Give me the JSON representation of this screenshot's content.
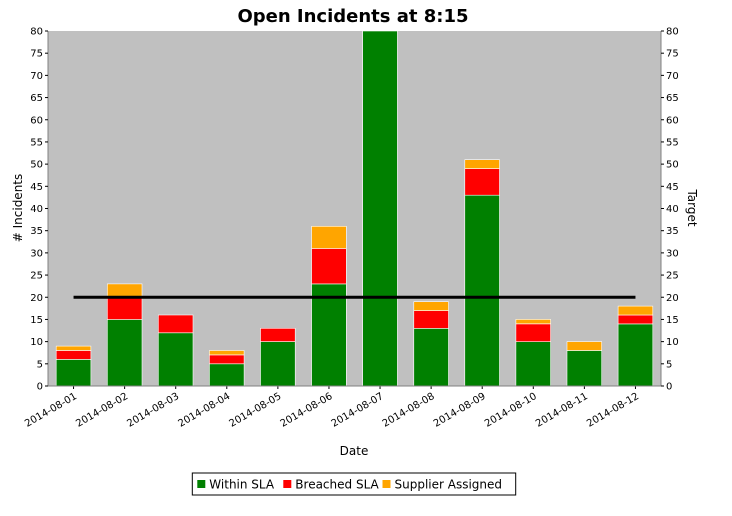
{
  "chart_data": {
    "type": "bar",
    "stacked": true,
    "title": "Open Incidents at 8:15",
    "xlabel": "Date",
    "ylabel": "# Incidents",
    "y2label": "Target",
    "ylim": [
      0,
      80
    ],
    "y2lim": [
      0,
      80
    ],
    "yticks": [
      0,
      5,
      10,
      15,
      20,
      25,
      30,
      35,
      40,
      45,
      50,
      55,
      60,
      65,
      70,
      75,
      80
    ],
    "categories": [
      "2014-08-01",
      "2014-08-02",
      "2014-08-03",
      "2014-08-04",
      "2014-08-05",
      "2014-08-06",
      "2014-08-07",
      "2014-08-08",
      "2014-08-09",
      "2014-08-10",
      "2014-08-11",
      "2014-08-12"
    ],
    "series": [
      {
        "name": "Within SLA",
        "color": "#008000",
        "values": [
          6,
          15,
          12,
          5,
          10,
          23,
          80,
          13,
          43,
          10,
          8,
          14
        ]
      },
      {
        "name": "Breached SLA",
        "color": "#ff0000",
        "values": [
          2,
          5,
          4,
          2,
          3,
          8,
          0,
          4,
          6,
          4,
          0,
          2
        ]
      },
      {
        "name": "Supplier Assigned",
        "color": "#ffa500",
        "values": [
          1,
          3,
          0,
          1,
          0,
          5,
          0,
          2,
          2,
          1,
          2,
          2
        ]
      }
    ],
    "target": {
      "value": 20,
      "color": "#000000"
    },
    "plot_background": "#c0c0c0",
    "grid": false,
    "legend_position": "bottom"
  }
}
